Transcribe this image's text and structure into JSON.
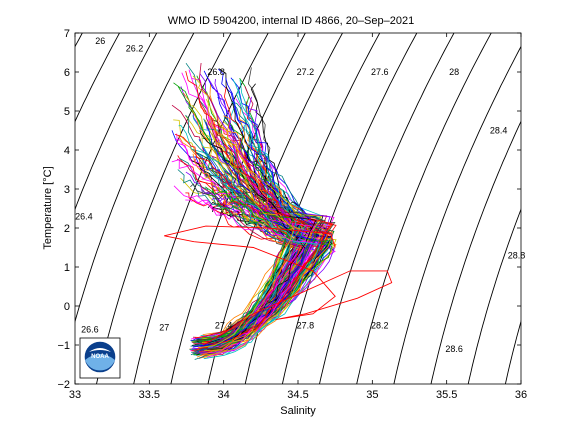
{
  "chart_data": {
    "type": "line",
    "title": "WMO ID 5904200, internal ID 4866, 20–Sep–2021",
    "xlabel": "Salinity",
    "ylabel": "Temperature [°C]",
    "xlim": [
      33,
      36
    ],
    "ylim": [
      -2,
      7
    ],
    "xticks": [
      "33",
      "33.5",
      "34",
      "34.5",
      "35",
      "35.5",
      "36"
    ],
    "yticks": [
      "−2",
      "−1",
      "0",
      "1",
      "2",
      "3",
      "4",
      "5",
      "6",
      "7"
    ],
    "grid": false,
    "legend": "none",
    "density_contours": [
      {
        "label": "26",
        "s_at_t0": 32.03,
        "label_at": [
          33.17,
          6.8
        ]
      },
      {
        "label": "26.2",
        "s_at_t0": 32.28,
        "label_at": [
          33.4,
          6.6
        ]
      },
      {
        "label": "26.4",
        "s_at_t0": 32.53,
        "label_at": [
          33.06,
          2.3
        ]
      },
      {
        "label": "26.6",
        "s_at_t0": 32.78,
        "label_at": [
          33.1,
          -0.6
        ]
      },
      {
        "label": "26.8",
        "s_at_t0": 33.03,
        "label_at": [
          33.95,
          6.0
        ]
      },
      {
        "label": "27",
        "s_at_t0": 33.28,
        "label_at": [
          33.6,
          -0.55
        ]
      },
      {
        "label": "27.2",
        "s_at_t0": 33.53,
        "label_at": [
          34.55,
          6.0
        ]
      },
      {
        "label": "27.4",
        "s_at_t0": 33.78,
        "label_at": [
          34.0,
          -0.5
        ]
      },
      {
        "label": "27.6",
        "s_at_t0": 34.03,
        "label_at": [
          35.05,
          6.0
        ]
      },
      {
        "label": "27.8",
        "s_at_t0": 34.28,
        "label_at": [
          34.55,
          -0.5
        ]
      },
      {
        "label": "28",
        "s_at_t0": 34.53,
        "label_at": [
          35.55,
          6.0
        ]
      },
      {
        "label": "28.2",
        "s_at_t0": 34.78,
        "label_at": [
          35.05,
          -0.5
        ]
      },
      {
        "label": "28.4",
        "s_at_t0": 35.03,
        "label_at": [
          35.85,
          4.5
        ]
      },
      {
        "label": "28.6",
        "s_at_t0": 35.28,
        "label_at": [
          35.55,
          -1.1
        ]
      },
      {
        "label": "28.8",
        "s_at_t0": 35.53,
        "label_at": [
          35.97,
          1.3
        ]
      },
      {
        "label": "",
        "s_at_t0": 35.78,
        "label_at": null
      },
      {
        "label": "",
        "s_at_t0": 36.03,
        "label_at": null
      }
    ],
    "profiles_description": "approx. 150 float profiles",
    "profile_envelope": {
      "bottom": [
        33.82,
        -1.25
      ],
      "core_max_t": [
        34.6,
        2.1
      ],
      "warm_tail": [
        33.8,
        6.0
      ],
      "cold_loop_extreme": [
        35.13,
        0.6
      ]
    },
    "series_colors": [
      "#0000ff",
      "#ff0000",
      "#00a000",
      "#ff00ff",
      "#00bfbf",
      "#d4c400",
      "#000000",
      "#8000ff",
      "#ff8000",
      "#008080",
      "#404040",
      "#c00040"
    ]
  },
  "logo": {
    "name": "noaa-logo",
    "text": "NOAA"
  }
}
